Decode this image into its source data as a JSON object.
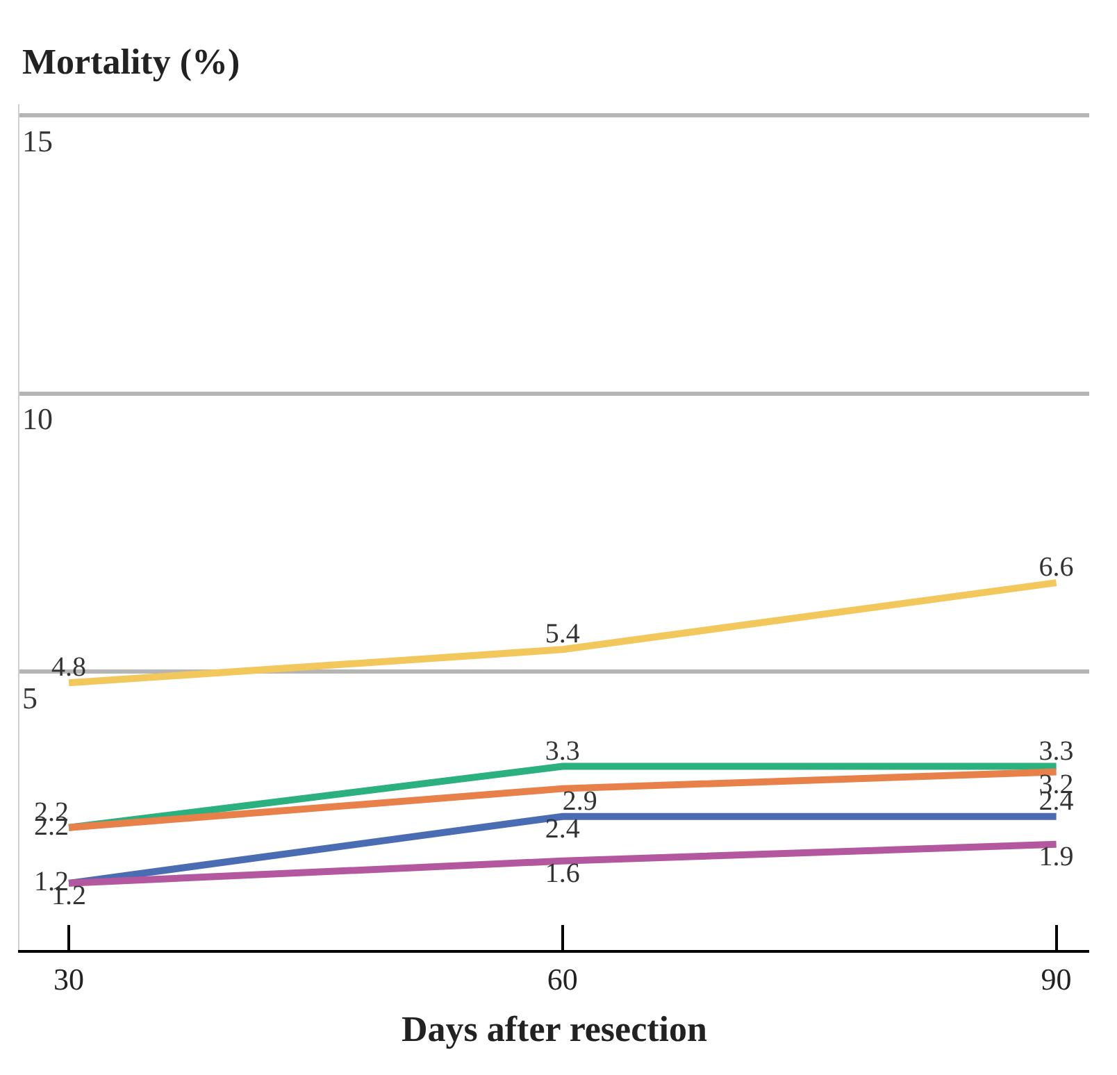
{
  "chart_data": {
    "type": "line",
    "ylabel": "Mortality (%)",
    "xlabel": "Days after resection",
    "x": [
      30,
      60,
      90
    ],
    "xlim": [
      27,
      92
    ],
    "xticks": [
      30,
      60,
      90
    ],
    "ylim": [
      0,
      15.2
    ],
    "yticks": [
      5,
      10,
      15
    ],
    "grid": "y",
    "marker": "none",
    "line_style": "solid",
    "data_labels": true,
    "series": [
      {
        "color": "#f2c75c",
        "values": [
          4.8,
          5.4,
          6.6
        ]
      },
      {
        "color": "#2bb07f",
        "values": [
          2.2,
          3.3,
          3.3
        ]
      },
      {
        "color": "#e8804a",
        "values": [
          2.2,
          2.9,
          3.2
        ]
      },
      {
        "color": "#4a6cb3",
        "values": [
          1.2,
          2.4,
          2.4
        ]
      },
      {
        "color": "#b3589f",
        "values": [
          1.2,
          1.6,
          1.9
        ]
      }
    ]
  }
}
